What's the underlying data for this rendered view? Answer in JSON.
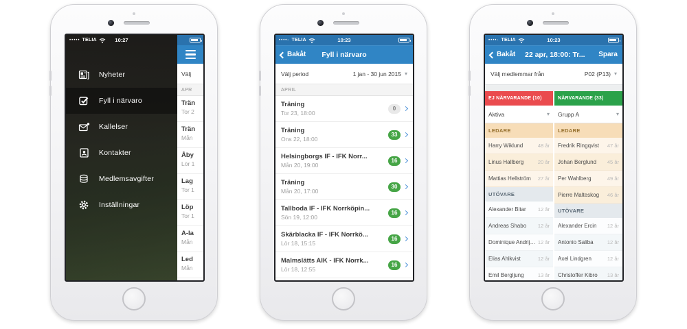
{
  "colors": {
    "status_blue": "#2a72ad",
    "nav_blue": "#3085c5",
    "badge_green": "#46a546",
    "chevron_blue": "#4a90d9",
    "absent_red": "#ea4b4e",
    "present_green": "#2ba24a"
  },
  "icons": {
    "caret": "▾"
  },
  "phone1": {
    "status": {
      "dots": "•••••",
      "carrier": "TELIA",
      "time": "10:27"
    },
    "menu": {
      "items": [
        {
          "label": "Nyheter",
          "icon": "news-icon",
          "active": false
        },
        {
          "label": "Fyll i närvaro",
          "icon": "checkbox-icon",
          "active": true
        },
        {
          "label": "Kallelser",
          "icon": "envelope-icon",
          "active": false
        },
        {
          "label": "Kontakter",
          "icon": "contact-card-icon",
          "active": false
        },
        {
          "label": "Medlemsavgifter",
          "icon": "coins-icon",
          "active": false
        },
        {
          "label": "Inställningar",
          "icon": "gear-icon",
          "active": false
        }
      ]
    },
    "peek": {
      "select_label": "Välj",
      "section": "APR",
      "items": [
        {
          "title": "Trän",
          "sub": "Tor 2"
        },
        {
          "title": "Trän",
          "sub": "Mån"
        },
        {
          "title": "Åby",
          "sub": "Lör 1"
        },
        {
          "title": "Lag",
          "sub": "Tor 1"
        },
        {
          "title": "Löp",
          "sub": "Tor 1"
        },
        {
          "title": "A-la",
          "sub": "Mån"
        },
        {
          "title": "Led",
          "sub": "Mån"
        }
      ]
    }
  },
  "phone2": {
    "status": {
      "dots": "••••◦",
      "carrier": "TELIA",
      "time": "10:23"
    },
    "nav": {
      "back": "Bakåt",
      "title": "Fyll i närvaro"
    },
    "period": {
      "label": "Välj period",
      "value": "1 jan - 30 jun 2015"
    },
    "section": "APRIL",
    "items": [
      {
        "title": "Träning",
        "sub": "Tor 23, 18:00",
        "count": "0",
        "zero": true
      },
      {
        "title": "Träning",
        "sub": "Ons 22, 18:00",
        "count": "33",
        "zero": false
      },
      {
        "title": "Helsingborgs IF - IFK Norr...",
        "sub": "Mån 20, 19:00",
        "count": "16",
        "zero": false
      },
      {
        "title": "Träning",
        "sub": "Mån 20, 17:00",
        "count": "30",
        "zero": false
      },
      {
        "title": "Tallboda IF - IFK Norrköpin...",
        "sub": "Sön 19, 12:00",
        "count": "16",
        "zero": false
      },
      {
        "title": "Skärblacka IF - IFK Norrkö...",
        "sub": "Lör 18, 15:15",
        "count": "16",
        "zero": false
      },
      {
        "title": "Malmslätts AIK - IFK Norrk...",
        "sub": "Lör 18, 12:55",
        "count": "16",
        "zero": false
      }
    ]
  },
  "phone3": {
    "status": {
      "dots": "••••◦",
      "carrier": "TELIA",
      "time": "10:23"
    },
    "nav": {
      "back": "Bakåt",
      "title": "22 apr, 18:00: Tr...",
      "action": "Spara"
    },
    "member_select": {
      "label": "Välj medlemmar från",
      "value": "P02 (P13)"
    },
    "columns": [
      {
        "header": "EJ NÄRVARANDE (10)",
        "header_color": "#ea4b4e",
        "filter": "Aktiva",
        "sections": [
          {
            "title": "LEDARE",
            "kind": "ledare",
            "rows": [
              [
                "Harry Wiklund",
                "48 år"
              ],
              [
                "Linus Hallberg",
                "20 år"
              ],
              [
                "Mattias Hellström",
                "27 år"
              ]
            ]
          },
          {
            "title": "UTÖVARE",
            "kind": "utovare",
            "rows": [
              [
                "Alexander Bitar",
                "12 år"
              ],
              [
                "Andreas Shabo",
                "12 år"
              ],
              [
                "Dominique Andrije...",
                "12 år"
              ],
              [
                "Elias Ahlkvist",
                "12 år"
              ],
              [
                "Emil Bergljung",
                "13 år"
              ]
            ]
          }
        ]
      },
      {
        "header": "NÄRVARANDE (33)",
        "header_color": "#2ba24a",
        "filter": "Grupp A",
        "sections": [
          {
            "title": "LEDARE",
            "kind": "ledare",
            "rows": [
              [
                "Fredrik Ringqvist",
                "47 år"
              ],
              [
                "Johan Berglund",
                "45 år"
              ],
              [
                "Per Wahlberg",
                "49 år"
              ],
              [
                "Pierre Malteskog",
                "46 år"
              ]
            ]
          },
          {
            "title": "UTÖVARE",
            "kind": "utovare",
            "rows": [
              [
                "Alexander Ercin",
                "12 år"
              ],
              [
                "Antonio Saliba",
                "12 år"
              ],
              [
                "Axel Lindgren",
                "12 år"
              ],
              [
                "Christoffer Kibro",
                "13 år"
              ]
            ]
          }
        ]
      }
    ]
  }
}
